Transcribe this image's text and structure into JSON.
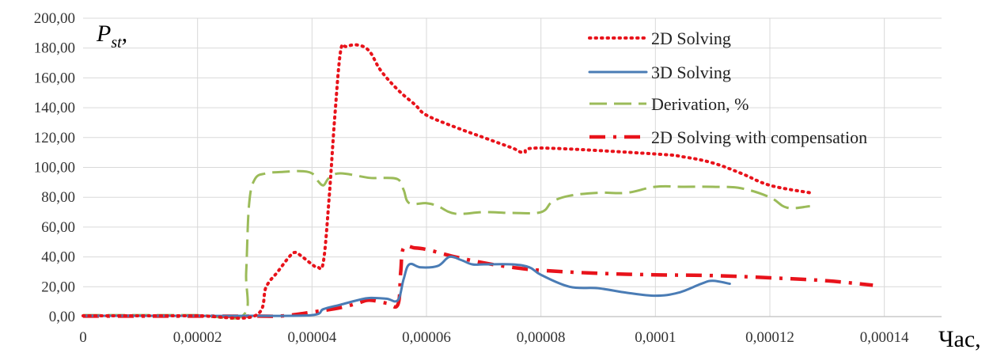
{
  "chart_data": {
    "type": "line",
    "ylabel_main": "P",
    "ylabel_sub": "st",
    "ylabel_suffix": ",",
    "xlabel": "Час,",
    "xlim": [
      0,
      0.00015
    ],
    "ylim": [
      0,
      200
    ],
    "grid": true,
    "legend_position": "top-right",
    "y_ticks": [
      {
        "value": 0,
        "label": "0,00"
      },
      {
        "value": 20,
        "label": "20,00"
      },
      {
        "value": 40,
        "label": "40,00"
      },
      {
        "value": 60,
        "label": "60,00"
      },
      {
        "value": 80,
        "label": "80,00"
      },
      {
        "value": 100,
        "label": "100,00"
      },
      {
        "value": 120,
        "label": "120,00"
      },
      {
        "value": 140,
        "label": "140,00"
      },
      {
        "value": 160,
        "label": "160,00"
      },
      {
        "value": 180,
        "label": "180,00"
      },
      {
        "value": 200,
        "label": "200,00"
      }
    ],
    "x_ticks": [
      {
        "value": 0,
        "label": "0"
      },
      {
        "value": 2e-05,
        "label": "0,00002"
      },
      {
        "value": 4e-05,
        "label": "0,00004"
      },
      {
        "value": 6e-05,
        "label": "0,00006"
      },
      {
        "value": 8e-05,
        "label": "0,00008"
      },
      {
        "value": 0.0001,
        "label": "0,0001"
      },
      {
        "value": 0.00012,
        "label": "0,00012"
      },
      {
        "value": 0.00014,
        "label": "0,00014"
      }
    ],
    "series": [
      {
        "name": "2D Solving",
        "color": "#e8131b",
        "style": "dotted",
        "x": [
          0,
          1e-05,
          2e-05,
          3e-05,
          3.2e-05,
          3.4e-05,
          3.6e-05,
          3.7e-05,
          3.8e-05,
          4e-05,
          4.1e-05,
          4.2e-05,
          4.3e-05,
          4.4e-05,
          4.5e-05,
          4.6e-05,
          4.8e-05,
          5e-05,
          5.2e-05,
          5.5e-05,
          5.8e-05,
          6e-05,
          6.5e-05,
          7e-05,
          7.5e-05,
          7.7e-05,
          8e-05,
          0.0001,
          0.000105,
          0.00011,
          0.000115,
          0.00012,
          0.000127
        ],
        "y": [
          0.5,
          0.5,
          0.5,
          0.5,
          20,
          30,
          40,
          43,
          41,
          35,
          33,
          37,
          80,
          135,
          178,
          181,
          182,
          178,
          165,
          152,
          142,
          135,
          127,
          120,
          113,
          110,
          113,
          109,
          107,
          103,
          96,
          88,
          83
        ]
      },
      {
        "name": "3D Solving",
        "color": "#4a7cb5",
        "style": "solid",
        "x": [
          0,
          1e-05,
          2e-05,
          3e-05,
          4e-05,
          4.2e-05,
          4.5e-05,
          4.8e-05,
          5e-05,
          5.3e-05,
          5.5e-05,
          5.6e-05,
          5.7e-05,
          5.9e-05,
          6.2e-05,
          6.4e-05,
          6.6e-05,
          6.8e-05,
          7e-05,
          7.5e-05,
          7.8e-05,
          8e-05,
          8.5e-05,
          9e-05,
          9.5e-05,
          0.0001,
          0.000104,
          0.000108,
          0.00011,
          0.000113
        ],
        "y": [
          0.5,
          0.5,
          0.5,
          0.5,
          1,
          5,
          8,
          11,
          12.5,
          12,
          11,
          25,
          35,
          33,
          34,
          40,
          38,
          35,
          35,
          35,
          33,
          28,
          20,
          19,
          16,
          14,
          16,
          22,
          24,
          22
        ]
      },
      {
        "name": "Derivation, %",
        "color": "#9bbb59",
        "style": "dashed",
        "x": [
          0,
          1e-05,
          2e-05,
          2.8e-05,
          2.85e-05,
          2.9e-05,
          3e-05,
          3.2e-05,
          3.5e-05,
          3.8e-05,
          4e-05,
          4.1e-05,
          4.2e-05,
          4.3e-05,
          4.5e-05,
          5e-05,
          5.2e-05,
          5.5e-05,
          5.6e-05,
          5.7e-05,
          6e-05,
          6.2e-05,
          6.5e-05,
          7e-05,
          7.5e-05,
          8e-05,
          8.2e-05,
          8.5e-05,
          9e-05,
          9.5e-05,
          0.0001,
          0.000105,
          0.00011,
          0.000115,
          0.00012,
          0.000123,
          0.000127
        ],
        "y": [
          1,
          1,
          1,
          1,
          30,
          75,
          92,
          96,
          97,
          97.5,
          96,
          91,
          88,
          93,
          96,
          93,
          93,
          92,
          85,
          76,
          76,
          74,
          69,
          70,
          69.5,
          70,
          77,
          81,
          83,
          83,
          87,
          87,
          87,
          86,
          80,
          73,
          74
        ]
      },
      {
        "name": "2D Solving with compensation",
        "color": "#e8131b",
        "style": "dashdot",
        "x": [
          0,
          1e-05,
          2e-05,
          3e-05,
          3.5e-05,
          4e-05,
          4.5e-05,
          4.8e-05,
          5e-05,
          5.3e-05,
          5.5e-05,
          5.55e-05,
          5.6e-05,
          5.8e-05,
          6e-05,
          6.3e-05,
          6.5e-05,
          7e-05,
          7.5e-05,
          8e-05,
          9e-05,
          0.0001,
          0.00011,
          0.00012,
          0.00013,
          0.000138
        ],
        "y": [
          0.3,
          0.3,
          0.3,
          0.3,
          0.5,
          3,
          6,
          9,
          11,
          9,
          8,
          30,
          46,
          46,
          45,
          42,
          40,
          36,
          33,
          31,
          29,
          28,
          27.5,
          26,
          24,
          21
        ]
      }
    ]
  }
}
